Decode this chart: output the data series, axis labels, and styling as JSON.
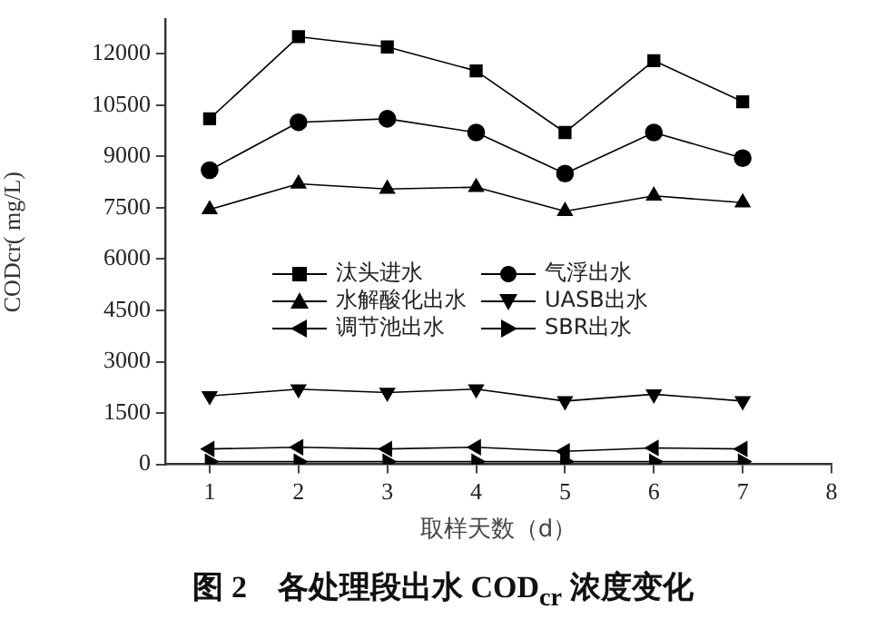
{
  "chart_data": {
    "type": "line",
    "title": "图 2　各处理段出水 COD$_{cr}$ 浓度变化",
    "xlabel": "取样天数（d）",
    "ylabel": "CODcr( mg/L)",
    "x": [
      1,
      2,
      3,
      4,
      5,
      6,
      7
    ],
    "xlim": [
      0.5,
      8
    ],
    "xticks": [
      1,
      2,
      3,
      4,
      5,
      6,
      7,
      8
    ],
    "ylim": [
      0,
      13000
    ],
    "yticks": [
      0,
      1500,
      3000,
      4500,
      6000,
      7500,
      9000,
      10500,
      12000
    ],
    "grid": false,
    "legend": "center",
    "line_style": "solid",
    "series": [
      {
        "name": "汰头进水",
        "color": "#000000",
        "marker": "square",
        "values": [
          10100,
          12500,
          12200,
          11500,
          9700,
          11800,
          10600
        ]
      },
      {
        "name": "气浮出水",
        "color": "#000000",
        "marker": "circle",
        "values": [
          8600,
          10000,
          10100,
          9700,
          8500,
          9700,
          8950
        ]
      },
      {
        "name": "水解酸化出水",
        "color": "#000000",
        "marker": "triangle",
        "values": [
          7450,
          8200,
          8050,
          8100,
          7400,
          7850,
          7650
        ]
      },
      {
        "name": "UASB出水",
        "color": "#000000",
        "marker": "triangle-down",
        "values": [
          2000,
          2200,
          2100,
          2200,
          1850,
          2050,
          1850
        ]
      },
      {
        "name": "调节池出水",
        "color": "#000000",
        "marker": "triangle-left",
        "values": [
          450,
          500,
          450,
          500,
          380,
          480,
          450
        ]
      },
      {
        "name": "SBR出水",
        "color": "#000000",
        "marker": "triangle-right",
        "values": [
          80,
          80,
          80,
          80,
          80,
          80,
          80
        ]
      }
    ]
  }
}
